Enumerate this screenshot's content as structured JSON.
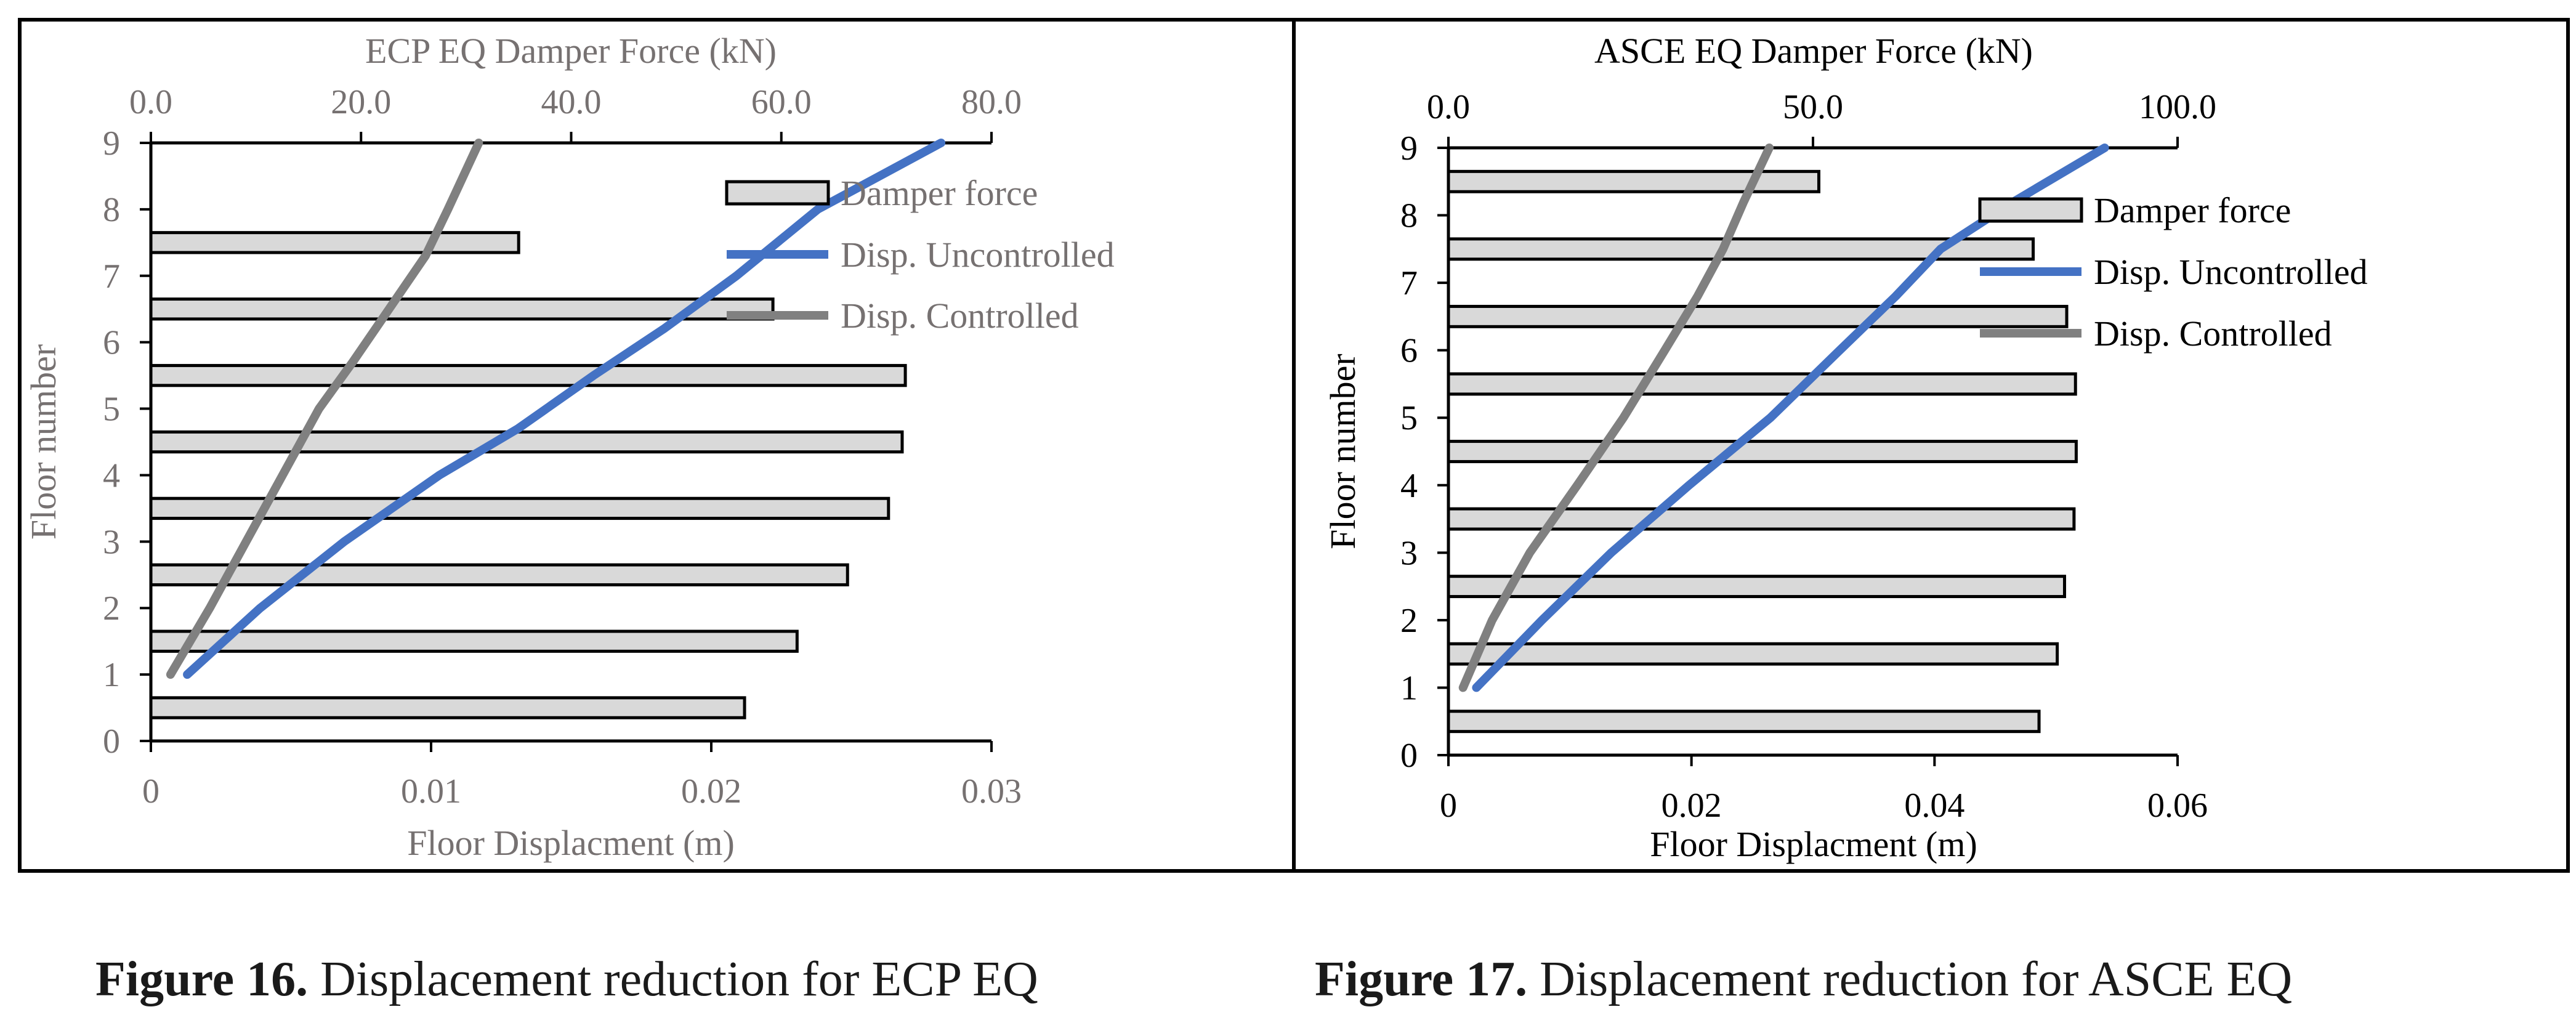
{
  "chart_data": [
    {
      "type": "bar+line",
      "top_axis_title": "ECP EQ Damper Force (kN)",
      "top_ticks": [
        "0.0",
        "20.0",
        "40.0",
        "60.0",
        "80.0"
      ],
      "top_range": [
        0,
        80
      ],
      "xlabel": "Floor Displacment (m)",
      "x_ticks": [
        "0",
        "0.01",
        "0.02",
        "0.03"
      ],
      "x_range": [
        0,
        0.03
      ],
      "ylabel": "Floor number",
      "y_ticks": [
        "0",
        "1",
        "2",
        "3",
        "4",
        "5",
        "6",
        "7",
        "8",
        "9"
      ],
      "y_range": [
        0,
        9
      ],
      "legend": [
        "Damper force",
        "Disp. Uncontrolled",
        "Disp. Controlled"
      ],
      "damper_force": {
        "name": "Damper force",
        "positions": [
          0.5,
          1.5,
          2.5,
          3.5,
          4.5,
          5.5,
          6.5,
          7.5
        ],
        "values": [
          56.5,
          61.5,
          66.3,
          70.2,
          71.5,
          71.8,
          59.2,
          35.0
        ]
      },
      "series": [
        {
          "name": "Disp. Uncontrolled",
          "x": [
            0.0013,
            0.0039,
            0.0069,
            0.0103,
            0.0131,
            0.0158,
            0.0183,
            0.0209,
            0.0238,
            0.0282
          ],
          "y": [
            1,
            2,
            3,
            4,
            4.7,
            5.5,
            6.2,
            7,
            8,
            9
          ]
        },
        {
          "name": "Disp. Controlled",
          "x": [
            0.0007,
            0.0021,
            0.0034,
            0.0047,
            0.006,
            0.0072,
            0.0085,
            0.0098,
            0.0106,
            0.0117
          ],
          "y": [
            1,
            2,
            3,
            4,
            5,
            5.7,
            6.5,
            7.3,
            8,
            9
          ]
        }
      ]
    },
    {
      "type": "bar+line",
      "top_axis_title": "ASCE EQ Damper Force (kN)",
      "top_ticks": [
        "0.0",
        "50.0",
        "100.0"
      ],
      "top_range": [
        0,
        100
      ],
      "xlabel": "Floor Displacment (m)",
      "x_ticks": [
        "0",
        "0.02",
        "0.04",
        "0.06"
      ],
      "x_range": [
        0,
        0.06
      ],
      "ylabel": "Floor number",
      "y_ticks": [
        "0",
        "1",
        "2",
        "3",
        "4",
        "5",
        "6",
        "7",
        "8",
        "9"
      ],
      "y_range": [
        0,
        9
      ],
      "legend": [
        "Damper force",
        "Disp. Uncontrolled",
        "Disp. Controlled"
      ],
      "damper_force": {
        "name": "Damper force",
        "positions": [
          0.5,
          1.5,
          2.5,
          3.5,
          4.5,
          5.5,
          6.5,
          7.5,
          8.5
        ],
        "values": [
          81.0,
          83.5,
          84.5,
          85.8,
          86.1,
          86.0,
          84.8,
          80.2,
          50.8
        ]
      },
      "series": [
        {
          "name": "Disp. Uncontrolled",
          "x": [
            0.0023,
            0.0077,
            0.0134,
            0.0198,
            0.0265,
            0.0322,
            0.0368,
            0.0405,
            0.0465,
            0.054
          ],
          "y": [
            1,
            2,
            3,
            4,
            5,
            6,
            6.8,
            7.5,
            8.2,
            9
          ]
        },
        {
          "name": "Disp. Controlled",
          "x": [
            0.0012,
            0.0036,
            0.0067,
            0.0106,
            0.0144,
            0.0178,
            0.0205,
            0.0226,
            0.0243,
            0.0264
          ],
          "y": [
            1,
            2,
            3,
            4,
            5,
            6,
            6.8,
            7.5,
            8.2,
            9
          ]
        }
      ]
    }
  ],
  "captions": [
    {
      "label": "Figure 16.",
      "text": " Displacement reduction for ECP EQ"
    },
    {
      "label": "Figure 17.",
      "text": " Displacement reduction for ASCE EQ"
    }
  ],
  "colors": {
    "uncontrolled": "#4472C4",
    "controlled": "#808080",
    "bar_fill": "#D9D9D9",
    "bar_stroke": "#000000",
    "axis_text_left": "#767171",
    "axis_text_right": "#000000",
    "frame": "#000000"
  }
}
